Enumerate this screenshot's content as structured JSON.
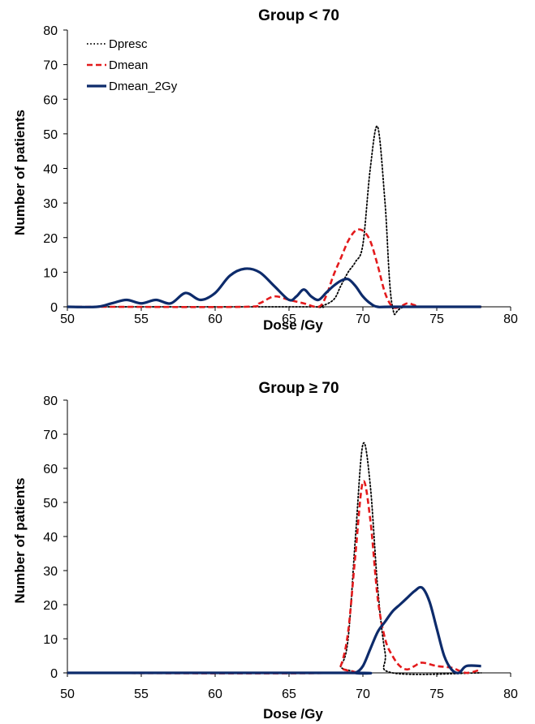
{
  "chart_data": [
    {
      "type": "line",
      "title": "Group < 70",
      "xlabel": "Dose /Gy",
      "ylabel": "Number of patients",
      "xlim": [
        50,
        80
      ],
      "ylim": [
        0,
        80
      ],
      "x_ticks": [
        50,
        55,
        60,
        65,
        70,
        75,
        80
      ],
      "y_ticks": [
        0,
        10,
        20,
        30,
        40,
        50,
        60,
        70,
        80
      ],
      "grid": false,
      "legend": "top-left",
      "series": [
        {
          "name": "Dpresc",
          "color": "#000000",
          "style": "dotted",
          "x": [
            50,
            52,
            66,
            67,
            68,
            68.5,
            69,
            69.5,
            70,
            70.5,
            71,
            71.5,
            72,
            73,
            78
          ],
          "y": [
            0,
            0,
            0,
            0,
            2,
            6,
            10,
            13,
            18,
            40,
            52,
            30,
            0,
            0,
            0
          ]
        },
        {
          "name": "Dmean",
          "color": "#e31a1c",
          "style": "dashed",
          "x": [
            50,
            52,
            53,
            62,
            63,
            64,
            65,
            66,
            67,
            67.5,
            68,
            68.5,
            69,
            69.5,
            70,
            70.5,
            71,
            71.5,
            72,
            72.5,
            73,
            73.5,
            74,
            78
          ],
          "y": [
            0,
            0,
            0,
            0,
            1,
            3,
            2,
            1,
            0,
            3,
            9,
            14,
            19,
            22,
            22,
            19,
            12,
            4,
            0,
            0,
            1,
            0.5,
            0,
            0
          ]
        },
        {
          "name": "Dmean_2Gy",
          "color": "#0d2b6b",
          "style": "solid",
          "x": [
            50,
            52,
            53,
            54,
            55,
            56,
            57,
            58,
            59,
            60,
            61,
            62,
            63,
            64,
            65,
            65.5,
            66,
            66.5,
            67,
            67.5,
            68,
            68.5,
            69,
            69.5,
            70,
            70.5,
            71,
            72,
            78
          ],
          "y": [
            0,
            0,
            1,
            2,
            1,
            2,
            1,
            4,
            2,
            4,
            9,
            11,
            10,
            6,
            2,
            3,
            5,
            3,
            2,
            4,
            6,
            7.5,
            8,
            6,
            3,
            1,
            0,
            0,
            0
          ]
        }
      ]
    },
    {
      "type": "line",
      "title": "Group ≥ 70",
      "xlabel": "Dose /Gy",
      "ylabel": "Number of patients",
      "xlim": [
        50,
        80
      ],
      "ylim": [
        0,
        80
      ],
      "x_ticks": [
        50,
        55,
        60,
        65,
        70,
        75,
        80
      ],
      "y_ticks": [
        0,
        10,
        20,
        30,
        40,
        50,
        60,
        70,
        80
      ],
      "grid": false,
      "series": [
        {
          "name": "Dpresc",
          "color": "#000000",
          "style": "dotted",
          "x": [
            50,
            68,
            68.5,
            69,
            69.5,
            70,
            70.5,
            71,
            71.5,
            72,
            78
          ],
          "y": [
            0,
            0,
            2,
            10,
            40,
            67,
            55,
            25,
            6,
            0,
            0
          ]
        },
        {
          "name": "Dmean",
          "color": "#e31a1c",
          "style": "dashed",
          "x": [
            50,
            68,
            68.5,
            69,
            69.5,
            70,
            70.5,
            71,
            71.5,
            72,
            72.5,
            73,
            73.5,
            74,
            75,
            76,
            77,
            78
          ],
          "y": [
            0,
            0,
            2,
            12,
            35,
            56,
            45,
            22,
            10,
            5,
            2,
            1,
            2,
            3,
            2,
            1.5,
            0,
            1
          ]
        },
        {
          "name": "Dmean_2Gy",
          "color": "#0d2b6b",
          "style": "solid",
          "x": [
            50,
            69,
            69.5,
            70,
            70.5,
            71,
            71.5,
            72,
            72.5,
            73,
            73.5,
            74,
            74.5,
            75,
            75.5,
            76,
            76.5,
            77,
            78
          ],
          "y": [
            0,
            0,
            0,
            2,
            7,
            12,
            15,
            18,
            20,
            22,
            24,
            25,
            21,
            13,
            5,
            1,
            0,
            2,
            2
          ]
        }
      ]
    }
  ]
}
